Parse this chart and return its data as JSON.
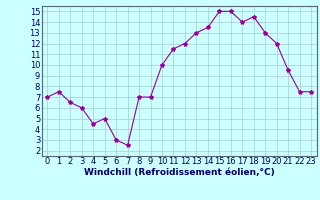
{
  "x": [
    0,
    1,
    2,
    3,
    4,
    5,
    6,
    7,
    8,
    9,
    10,
    11,
    12,
    13,
    14,
    15,
    16,
    17,
    18,
    19,
    20,
    21,
    22,
    23
  ],
  "y": [
    7,
    7.5,
    6.5,
    6,
    4.5,
    5,
    3,
    2.5,
    7,
    7,
    10,
    11.5,
    12,
    13,
    13.5,
    15,
    15,
    14,
    14.5,
    13,
    12,
    9.5,
    7.5,
    7.5
  ],
  "line_color": "#990099",
  "marker": "*",
  "marker_size": 3,
  "bg_color": "#ccffff",
  "grid_color": "#aacccc",
  "xlabel": "Windchill (Refroidissement éolien,°C)",
  "xlabel_color": "#000066",
  "xlabel_fontsize": 6.5,
  "tick_color": "#000066",
  "tick_fontsize": 6,
  "yticks": [
    2,
    3,
    4,
    5,
    6,
    7,
    8,
    9,
    10,
    11,
    12,
    13,
    14,
    15
  ],
  "ylim": [
    1.5,
    15.5
  ],
  "xlim": [
    -0.5,
    23.5
  ],
  "xticks": [
    0,
    1,
    2,
    3,
    4,
    5,
    6,
    7,
    8,
    9,
    10,
    11,
    12,
    13,
    14,
    15,
    16,
    17,
    18,
    19,
    20,
    21,
    22,
    23
  ]
}
